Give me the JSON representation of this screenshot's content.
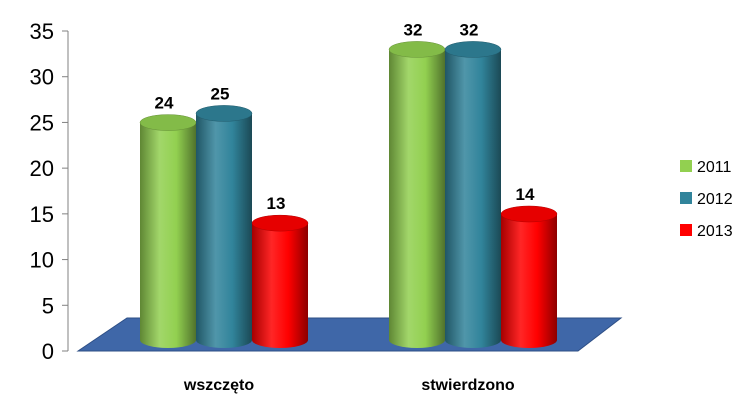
{
  "chart_data": {
    "type": "bar",
    "categories": [
      "wszczęto",
      "stwierdzono"
    ],
    "series": [
      {
        "name": "2011",
        "values": [
          24,
          32
        ],
        "color": "#92D050"
      },
      {
        "name": "2012",
        "values": [
          25,
          32
        ],
        "color": "#31849B"
      },
      {
        "name": "2013",
        "values": [
          13,
          14
        ],
        "color": "#FF0000"
      }
    ],
    "ylim": [
      0,
      35
    ],
    "yticks": [
      0,
      5,
      10,
      15,
      20,
      25,
      30,
      35
    ],
    "grid": false,
    "legend_position": "right",
    "floor_color": "#3F67A8",
    "style": "3d-cylinder"
  }
}
